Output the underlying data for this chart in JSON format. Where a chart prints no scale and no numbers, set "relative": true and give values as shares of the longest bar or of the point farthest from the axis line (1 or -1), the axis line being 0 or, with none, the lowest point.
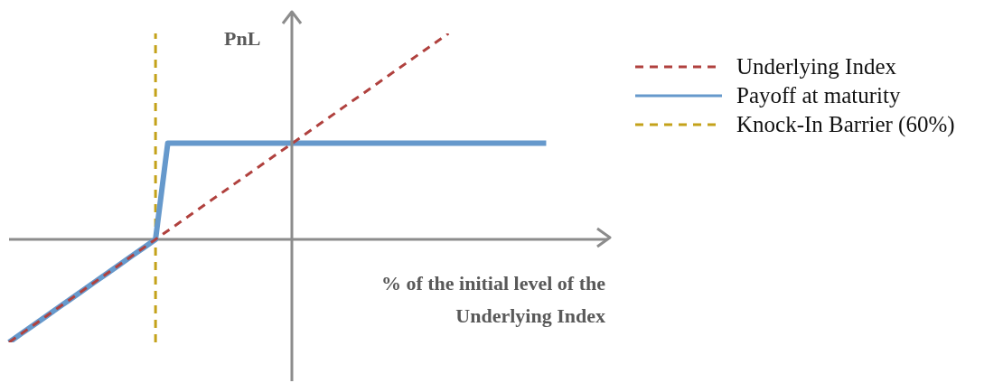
{
  "chart_data": {
    "type": "line",
    "relative": true,
    "ylabel": "PnL",
    "xlabel": "% of the initial level of the Underlying Index",
    "legend": "right",
    "marker": "none",
    "categories": [
      null,
      null,
      null,
      null,
      null,
      null,
      null,
      null,
      null,
      null,
      null,
      null,
      null,
      null,
      null,
      null,
      null,
      null,
      null,
      null,
      null,
      null,
      null,
      null,
      null,
      null,
      null,
      null,
      null,
      null,
      null,
      null,
      null,
      null,
      null,
      null,
      null,
      null,
      null,
      null,
      null,
      null,
      null,
      null,
      null,
      null,
      null,
      null,
      null,
      null
    ],
    "series": [
      {
        "name": "Underlying Index",
        "color": "#b0413e",
        "line_style": "dashed",
        "values": [
          -0.5,
          -0.458,
          -0.417,
          -0.375,
          -0.333,
          -0.292,
          -0.25,
          -0.208,
          -0.167,
          -0.125,
          -0.083,
          -0.042,
          0,
          0.042,
          0.083,
          0.125,
          0.167,
          0.208,
          0.25,
          0.292,
          0.333,
          0.375,
          0.417,
          0.458,
          0.5,
          0.542,
          0.583,
          0.625,
          0.667,
          0.708,
          0.75,
          0.792,
          0.833,
          0.875,
          0.917,
          0.958,
          1,
          null,
          null,
          null,
          null,
          null,
          null,
          null,
          null,
          null,
          null,
          null,
          null,
          null
        ]
      },
      {
        "name": "Payoff at maturity",
        "color": "#6699cc",
        "line_style": "solid",
        "values": [
          -0.5,
          -0.458,
          -0.417,
          -0.375,
          -0.333,
          -0.292,
          -0.25,
          -0.208,
          -0.167,
          -0.125,
          -0.083,
          -0.042,
          0,
          0.467,
          0.467,
          0.467,
          0.467,
          0.467,
          0.467,
          0.467,
          0.467,
          0.467,
          0.467,
          0.467,
          0.467,
          0.467,
          0.467,
          0.467,
          0.467,
          0.467,
          0.467,
          0.467,
          0.467,
          0.467,
          0.467,
          0.467,
          0.467,
          0.467,
          0.467,
          0.467,
          0.467,
          0.467,
          0.467,
          0.467,
          0.467,
          null,
          null,
          null,
          null,
          null
        ]
      }
    ],
    "ref_lines": [
      {
        "axis": "x",
        "label": "Knock-In Barrier (60%)",
        "color": "#c4a21a",
        "line_style": "dashed"
      }
    ]
  }
}
